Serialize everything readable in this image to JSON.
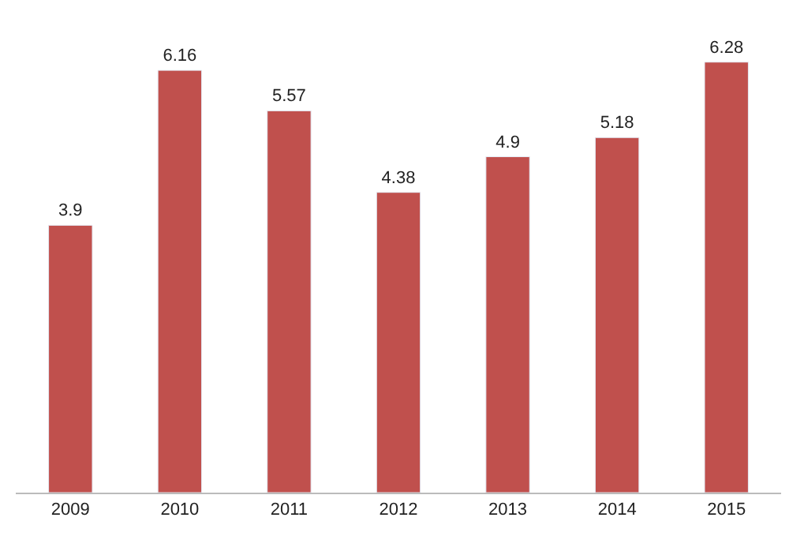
{
  "chart_data": {
    "type": "bar",
    "categories": [
      "2009",
      "2010",
      "2011",
      "2012",
      "2013",
      "2014",
      "2015"
    ],
    "values": [
      3.9,
      6.16,
      5.57,
      4.38,
      4.9,
      5.18,
      6.28
    ],
    "color": "#c0504d",
    "data_labels": true,
    "tick_labels": "x"
  }
}
